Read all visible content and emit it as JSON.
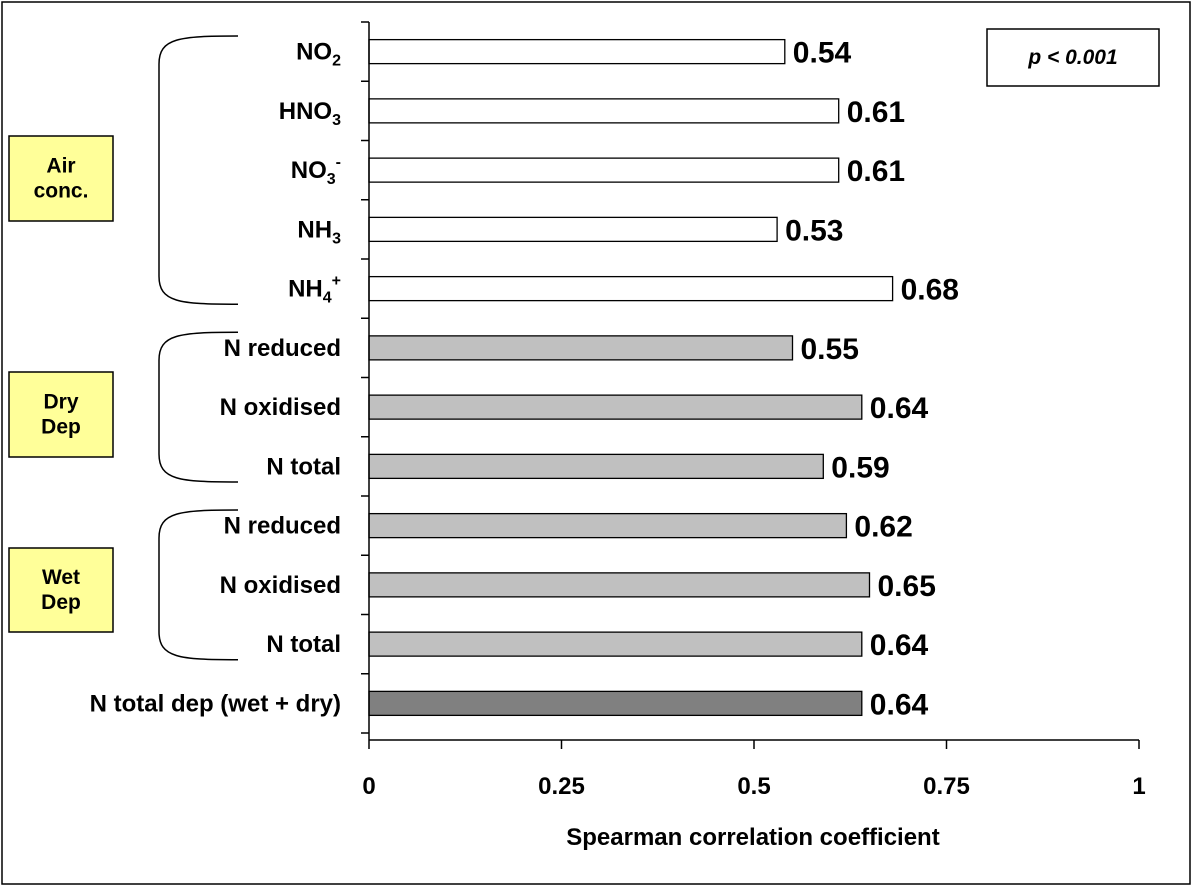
{
  "chart_data": {
    "type": "bar",
    "orientation": "horizontal",
    "xlabel": "Spearman correlation coefficient",
    "xlim": [
      0,
      1
    ],
    "xticks": [
      "0",
      "0.25",
      "0.5",
      "0.75",
      "1"
    ],
    "annotation": "p < 0.001",
    "groups": [
      {
        "label": "Air conc.",
        "label_lines": [
          "Air",
          "conc."
        ],
        "highlight_color": "#ffff99"
      },
      {
        "label": "Dry Dep",
        "label_lines": [
          "Dry",
          "Dep"
        ],
        "highlight_color": "#ffff99"
      },
      {
        "label": "Wet Dep",
        "label_lines": [
          "Wet",
          "Dep"
        ],
        "highlight_color": "#ffff99"
      }
    ],
    "categories": [
      {
        "main": "NO",
        "sub": "2",
        "sup": "",
        "value": 0.54,
        "value_label": "0.54",
        "color": "#ffffff",
        "group": 0
      },
      {
        "main": "HNO",
        "sub": "3",
        "sup": "",
        "value": 0.61,
        "value_label": "0.61",
        "color": "#ffffff",
        "group": 0
      },
      {
        "main": "NO",
        "sub": "3",
        "sup": "-",
        "value": 0.61,
        "value_label": "0.61",
        "color": "#ffffff",
        "group": 0
      },
      {
        "main": "NH",
        "sub": "3",
        "sup": "",
        "value": 0.53,
        "value_label": "0.53",
        "color": "#ffffff",
        "group": 0
      },
      {
        "main": "NH",
        "sub": "4",
        "sup": "+",
        "value": 0.68,
        "value_label": "0.68",
        "color": "#ffffff",
        "group": 0
      },
      {
        "main": "N reduced",
        "sub": "",
        "sup": "",
        "value": 0.55,
        "value_label": "0.55",
        "color": "#c0c0c0",
        "group": 1
      },
      {
        "main": "N oxidised",
        "sub": "",
        "sup": "",
        "value": 0.64,
        "value_label": "0.64",
        "color": "#c0c0c0",
        "group": 1
      },
      {
        "main": "N total",
        "sub": "",
        "sup": "",
        "value": 0.59,
        "value_label": "0.59",
        "color": "#c0c0c0",
        "group": 1
      },
      {
        "main": "N reduced",
        "sub": "",
        "sup": "",
        "value": 0.62,
        "value_label": "0.62",
        "color": "#c0c0c0",
        "group": 2
      },
      {
        "main": "N oxidised",
        "sub": "",
        "sup": "",
        "value": 0.65,
        "value_label": "0.65",
        "color": "#c0c0c0",
        "group": 2
      },
      {
        "main": "N total",
        "sub": "",
        "sup": "",
        "value": 0.64,
        "value_label": "0.64",
        "color": "#c0c0c0",
        "group": 2
      },
      {
        "main": "N total dep (wet + dry)",
        "sub": "",
        "sup": "",
        "value": 0.64,
        "value_label": "0.64",
        "color": "#808080",
        "group": null
      }
    ],
    "grid": false,
    "legend": "none"
  }
}
